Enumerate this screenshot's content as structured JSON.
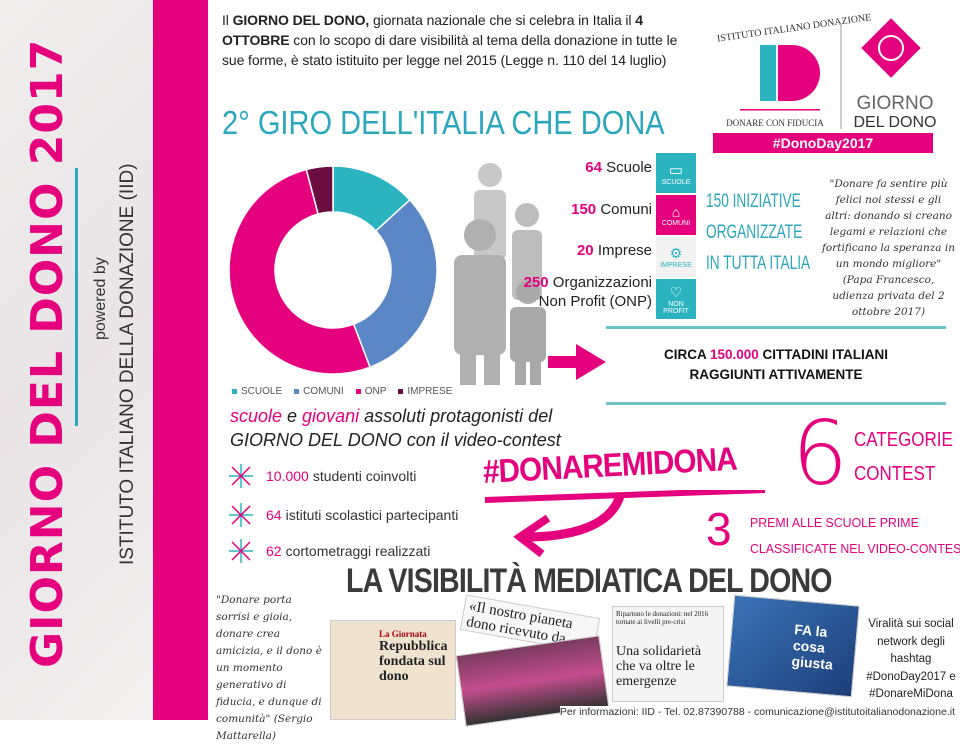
{
  "sidebar": {
    "title": "GIORNO DEL DONO 2017",
    "powered_by": "powered by",
    "institute": "ISTITUTO ITALIANO DELLA DONAZIONE (IID)"
  },
  "intro": {
    "p1": "Il ",
    "b1": "GIORNO DEL DONO,",
    "p2": " giornata nazionale che si celebra in Italia il ",
    "b2": "4 OTTOBRE",
    "p3": " con lo scopo di dare visibilità al tema della donazione in tutte le sue forme, è stato istituito per legge nel 2015 (Legge n. 110 del 14 luglio)"
  },
  "logo": {
    "arc_text": "ISTITUTO ITALIANO DONAZIONE",
    "letters": "ID",
    "tagline": "DONARE CON FIDUCIA",
    "giorno": "GIORNO",
    "del_dono": "DEL DONO",
    "hashtag": "#DonoDay2017"
  },
  "giro_title": "2° GIRO DELL'ITALIA CHE DONA",
  "chart_data": {
    "type": "pie",
    "donut": true,
    "categories": [
      "SCUOLE",
      "COMUNI",
      "ONP",
      "IMPRESE"
    ],
    "values": [
      64,
      150,
      250,
      20
    ],
    "colors": [
      "#2bb3c0",
      "#5b87c7",
      "#e5007e",
      "#6b0d3e"
    ],
    "legend_placement": "bottom"
  },
  "counts": [
    {
      "num": "64",
      "label": "Scuole",
      "icon": "book-icon",
      "icon_label": "SCUOLE",
      "color": "#2bb3c0"
    },
    {
      "num": "150",
      "label": "Comuni",
      "icon": "town-hall-icon",
      "icon_label": "COMUNI",
      "color": "#e5007e"
    },
    {
      "num": "20",
      "label": "Imprese",
      "icon": "gears-icon",
      "icon_label": "IMPRESE",
      "color": "#f2f2f2"
    },
    {
      "num": "250",
      "label": "Organizzazioni",
      "label2": "Non Profit (ONP)",
      "icon": "heart-icon",
      "icon_label": "NON PROFIT",
      "color": "#2bb3c0"
    }
  ],
  "iniziative": {
    "l1": "150 INIZIATIVE",
    "l2": "ORGANIZZATE",
    "l3": "IN TUTTA ITALIA"
  },
  "papa_quote": "\"Donare fa sentire più felici noi stessi e gli altri: donando si creano legami e relazioni che fortificano la speranza in un mondo migliore\" (Papa Francesco, udienza privata del 2 ottobre 2017)",
  "circa": {
    "pre": "CIRCA ",
    "num": "150.000",
    "post": " CITTADINI ITALIANI",
    "line2": "RAGGIUNTI ATTIVAMENTE"
  },
  "protag": {
    "w1": "scuole",
    "w2": " e ",
    "w3": "giovani",
    "w4": " assoluti protagonisti del",
    "line2a": "GIORNO DEL DONO",
    "line2b": " con il video-contest"
  },
  "stats": [
    {
      "num": "10.000",
      "text": "studenti coinvolti"
    },
    {
      "num": "64",
      "text": "istituti scolastici partecipanti"
    },
    {
      "num": "62",
      "text": "cortometraggi realizzati"
    }
  ],
  "hashtag": "#DONAREMIDONA",
  "contest": {
    "num": "6",
    "l1": "CATEGORIE",
    "l2": "CONTEST"
  },
  "premi": {
    "num": "3",
    "l1": "PREMI ALLE SCUOLE PRIME",
    "l2": "CLASSIFICATE NEL VIDEO-CONTEST"
  },
  "media_title": "LA VISIBILITÀ MEDIATICA DEL DONO",
  "mattarella_quote": "\"Donare porta sorrisi e gioia, donare crea amicizia, e il dono è un momento generativo di fiducia, e dunque di comunità\" (Sergio Mattarella)",
  "clips": {
    "c1_head": "La Giornata",
    "c1_title": "Repubblica fondata sul dono",
    "c2": "«Il nostro pianeta dono ricevuto da con...",
    "c3_head": "Ripartono le donazioni: nel 2016 tornate ai livelli pre-crisi",
    "c3_title": "Una solidarietà che va oltre le emergenze",
    "c4": "FA la cosa giusta"
  },
  "viral": "Viralità sui social network degli hashtag #DonoDay2017 e #DonareMiDona",
  "info": "Per informazioni: IID - Tel. 02.87390788 - comunicazione@istitutoitalianodonazione.it"
}
